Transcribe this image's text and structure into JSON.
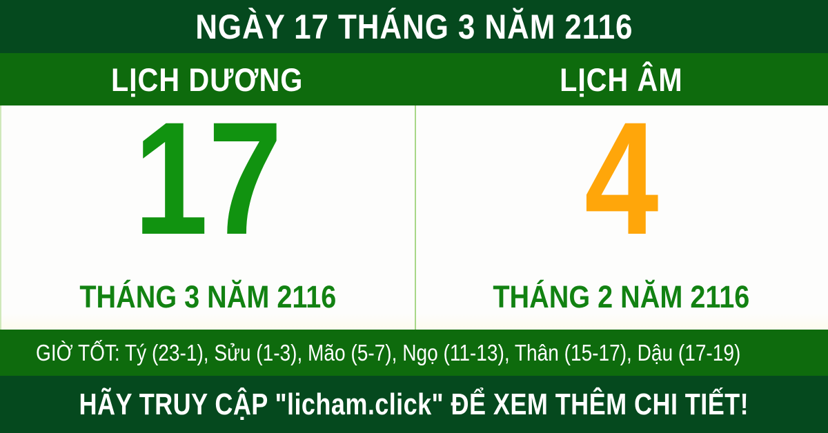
{
  "colors": {
    "dark_green": "#05491e",
    "green": "#0e6b0d",
    "solar_day_green": "#119310",
    "lunar_day_orange": "#ffa60a",
    "month_text_green": "#128212",
    "divider_light_green": "#a8d788",
    "background_white": "#fdfdfc"
  },
  "top_banner": {
    "title": "NGÀY 17 THÁNG 3 NĂM 2116"
  },
  "calendar_header": {
    "solar_label": "LỊCH DƯƠNG",
    "lunar_label": "LỊCH ÂM"
  },
  "solar": {
    "day": "17",
    "month_year": "THÁNG 3 NĂM 2116"
  },
  "lunar": {
    "day": "4",
    "month_year": "THÁNG 2 NĂM 2116"
  },
  "good_hours": {
    "text": "GIỜ TỐT: Tý (23-1), Sửu (1-3), Mão (5-7), Ngọ (11-13), Thân (15-17), Dậu (17-19)"
  },
  "footer": {
    "message": "HÃY TRUY CẬP \"licham.click\" ĐỂ XEM THÊM CHI TIẾT!"
  }
}
